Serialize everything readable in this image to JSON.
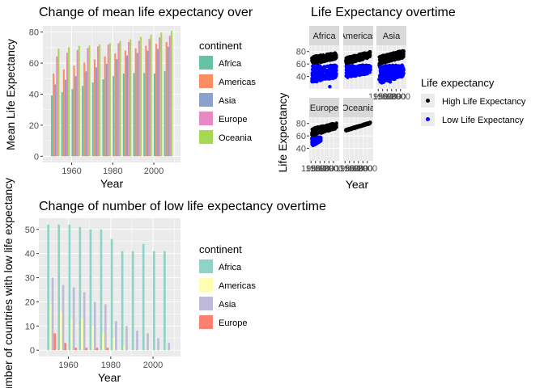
{
  "colors": {
    "panel_bg": "#ebebeb",
    "grid_major": "#ffffff",
    "strip_bg": "#d9d9d9",
    "high_point": "#000000",
    "low_point": "#0000ff"
  },
  "chart_data": [
    {
      "id": "mean-life",
      "type": "bar",
      "title": "Change of mean life expectancy over",
      "xlabel": "Year",
      "ylabel": "Mean Life Expectancy",
      "x": [
        1952,
        1957,
        1962,
        1967,
        1972,
        1977,
        1982,
        1987,
        1992,
        1997,
        2002,
        2007
      ],
      "xlim": [
        1946,
        2013
      ],
      "ylim": [
        -4,
        84
      ],
      "x_ticks": [
        1960,
        1980,
        2000
      ],
      "y_ticks": [
        0,
        20,
        40,
        60,
        80
      ],
      "legend_title": "continent",
      "series": [
        {
          "name": "Africa",
          "color": "#66c2a5",
          "values": [
            39.1,
            41.3,
            43.3,
            45.3,
            47.5,
            49.6,
            51.6,
            53.3,
            53.6,
            53.6,
            53.3,
            54.8
          ]
        },
        {
          "name": "Americas",
          "color": "#fc8d62",
          "values": [
            53.3,
            56.0,
            58.4,
            60.4,
            62.4,
            64.4,
            66.2,
            68.1,
            69.6,
            71.2,
            72.4,
            73.6
          ]
        },
        {
          "name": "Asia",
          "color": "#8da0cb",
          "values": [
            46.3,
            49.3,
            51.6,
            54.7,
            57.3,
            59.6,
            62.6,
            64.9,
            66.5,
            68.0,
            69.2,
            70.7
          ]
        },
        {
          "name": "Europe",
          "color": "#e78ac3",
          "values": [
            64.4,
            66.7,
            68.5,
            69.7,
            70.8,
            71.9,
            72.8,
            73.6,
            74.4,
            75.5,
            76.7,
            77.6
          ]
        },
        {
          "name": "Oceania",
          "color": "#a6d854",
          "values": [
            69.3,
            70.3,
            71.1,
            71.3,
            71.9,
            72.9,
            74.3,
            75.3,
            76.9,
            78.2,
            79.7,
            80.7
          ]
        }
      ]
    },
    {
      "id": "facet-scatter",
      "type": "scatter",
      "title": "Life Expectancy overtime",
      "xlabel": "Year",
      "ylabel": "Life Expectancy",
      "xlim": [
        1946,
        2013
      ],
      "ylim": [
        20,
        90
      ],
      "x_ticks": [
        1950,
        1960,
        1970,
        1980,
        1990,
        2000
      ],
      "x_tick_labels": [
        "1950",
        "1960",
        "1970",
        "1980",
        "1990",
        "2000"
      ],
      "y_ticks": [
        40,
        60,
        80
      ],
      "legend_title": "Life expectancy",
      "legend": [
        {
          "name": "High Life Expectancy",
          "color": "#000000"
        },
        {
          "name": "Low Life Expectancy",
          "color": "#0000ff"
        }
      ],
      "facets": [
        {
          "name": "Africa",
          "high_range": [
            [
              1952,
              60,
              72
            ],
            [
              2007,
              68,
              78
            ]
          ],
          "low_range": [
            [
              1952,
              30,
              58
            ],
            [
              2007,
              38,
              58
            ]
          ],
          "outliers": [
            [
              1992,
              23.6
            ]
          ]
        },
        {
          "name": "Americas",
          "high_range": [
            [
              1952,
              60,
              70
            ],
            [
              2007,
              70,
              80
            ]
          ],
          "low_range": [
            [
              1952,
              38,
              58
            ],
            [
              2007,
              45,
              58
            ]
          ],
          "outliers": []
        },
        {
          "name": "Asia",
          "high_range": [
            [
              1952,
              60,
              72
            ],
            [
              2007,
              70,
              82
            ]
          ],
          "low_range": [
            [
              1952,
              28,
              58
            ],
            [
              2007,
              40,
              58
            ]
          ],
          "outliers": [
            [
              1977,
              31.2
            ]
          ]
        },
        {
          "name": "Europe",
          "high_range": [
            [
              1952,
              60,
              72
            ],
            [
              2007,
              72,
              81
            ]
          ],
          "low_range": [
            [
              1952,
              43,
              58
            ],
            [
              1972,
              52,
              58
            ]
          ],
          "outliers": []
        },
        {
          "name": "Oceania",
          "high_range": [
            [
              1952,
              68,
              70
            ],
            [
              2007,
              80,
              82
            ]
          ],
          "low_range": [],
          "outliers": []
        }
      ]
    },
    {
      "id": "low-count",
      "type": "bar",
      "title": "Change of number of low life expectancy overtime",
      "xlabel": "Year",
      "ylabel": "Number of countries with low life expectancy",
      "x": [
        1952,
        1957,
        1962,
        1967,
        1972,
        1977,
        1982,
        1987,
        1992,
        1997,
        2002,
        2007
      ],
      "xlim": [
        1946,
        2013
      ],
      "ylim": [
        -2.6,
        54.6
      ],
      "x_ticks": [
        1960,
        1980,
        2000
      ],
      "y_ticks": [
        0,
        10,
        20,
        30,
        40,
        50
      ],
      "legend_title": "continent",
      "series": [
        {
          "name": "Africa",
          "color": "#8dd3c7",
          "values": [
            52,
            52,
            52,
            51,
            50,
            50,
            46,
            41,
            41,
            44,
            41,
            41
          ]
        },
        {
          "name": "Americas",
          "color": "#ffffb3",
          "values": [
            19,
            16,
            13,
            13,
            10,
            7,
            5,
            2,
            0,
            0,
            0,
            0
          ]
        },
        {
          "name": "Asia",
          "color": "#bebada",
          "values": [
            30,
            27,
            26,
            24,
            20,
            19,
            12,
            10,
            8,
            7,
            5,
            3
          ]
        },
        {
          "name": "Europe",
          "color": "#fb8072",
          "values": [
            7,
            3,
            1,
            1,
            1,
            1,
            0,
            0,
            0,
            0,
            0,
            0
          ]
        }
      ]
    }
  ]
}
